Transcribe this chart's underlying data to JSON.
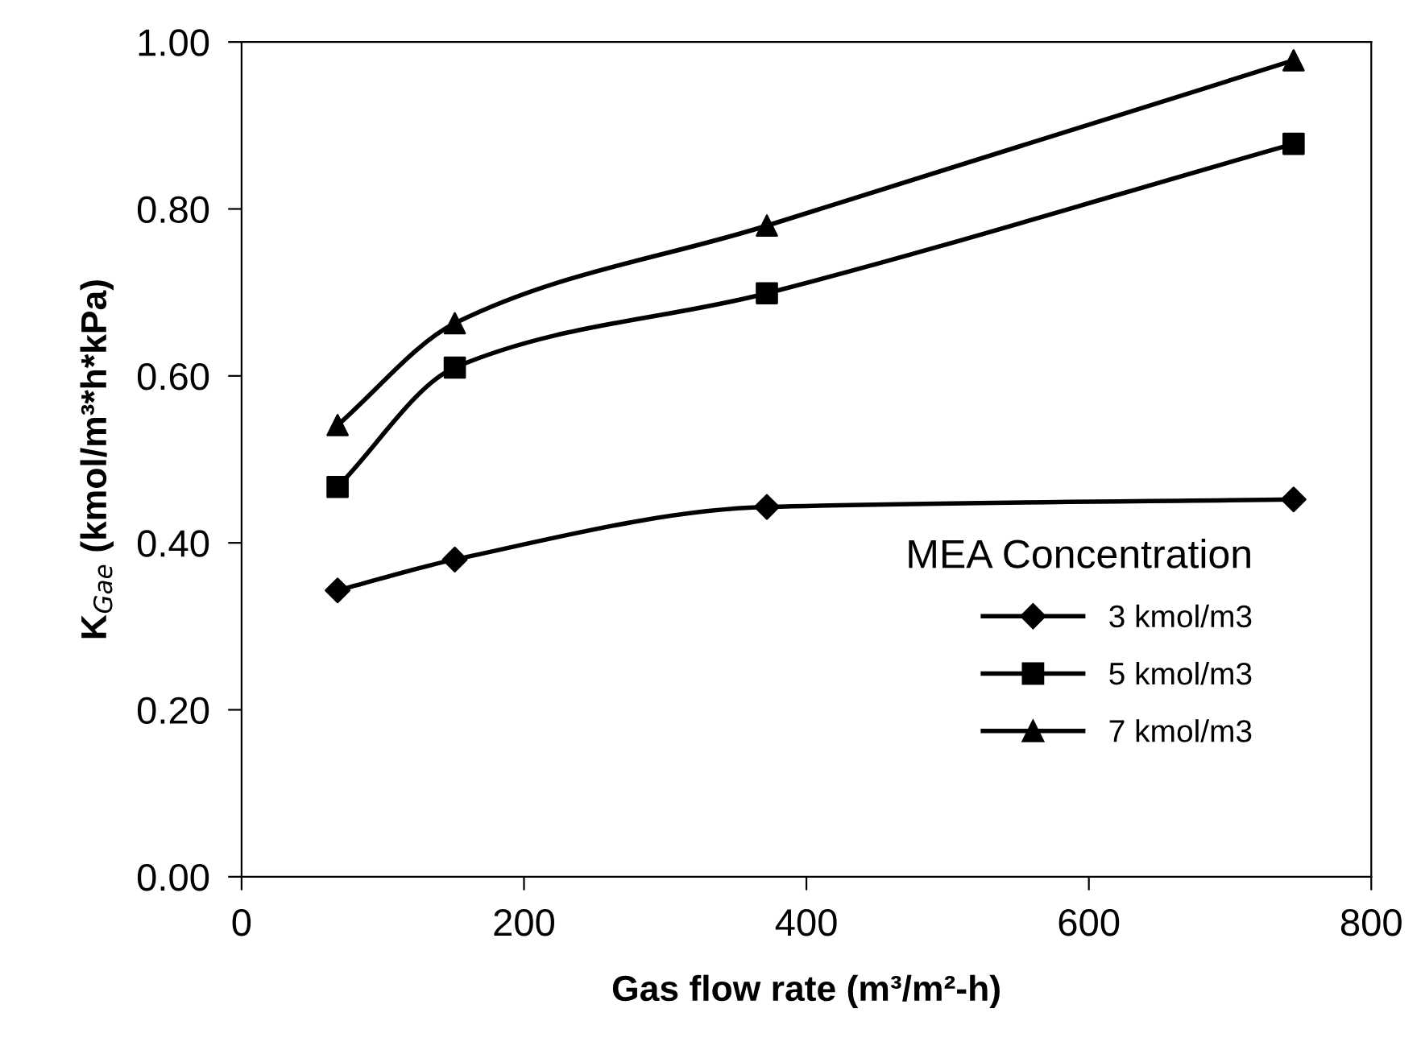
{
  "chart_data": {
    "type": "line",
    "xlabel": "Gas flow rate (m³/m²-h)",
    "ylabel": "K$_{Gae}$ (kmol/m³*h*kPa)",
    "legend_title": "MEA Concentration",
    "x": [
      68,
      151,
      372,
      745
    ],
    "series": [
      {
        "name": "3 kmol/m3",
        "color": "#000000",
        "marker": "diamond",
        "values": [
          0.343,
          0.38,
          0.443,
          0.452
        ]
      },
      {
        "name": "5 kmol/m3",
        "color": "#000000",
        "marker": "square",
        "values": [
          0.467,
          0.61,
          0.699,
          0.878
        ]
      },
      {
        "name": "7 kmol/m3",
        "color": "#000000",
        "marker": "triangle",
        "values": [
          0.541,
          0.663,
          0.78,
          0.978
        ]
      }
    ],
    "xlim": [
      0,
      800
    ],
    "xticks": [
      0,
      200,
      400,
      600,
      800
    ],
    "ylim": [
      0,
      1
    ],
    "yticks": [
      {
        "value": 0,
        "label": "0.00"
      },
      {
        "value": 0.2,
        "label": "0.20"
      },
      {
        "value": 0.4,
        "label": "0.40"
      },
      {
        "value": 0.6,
        "label": "0.60"
      },
      {
        "value": 0.8,
        "label": "0.80"
      },
      {
        "value": 1,
        "label": "1.00"
      }
    ],
    "grid": false,
    "legend": "bottom right",
    "line_style": "solid"
  }
}
